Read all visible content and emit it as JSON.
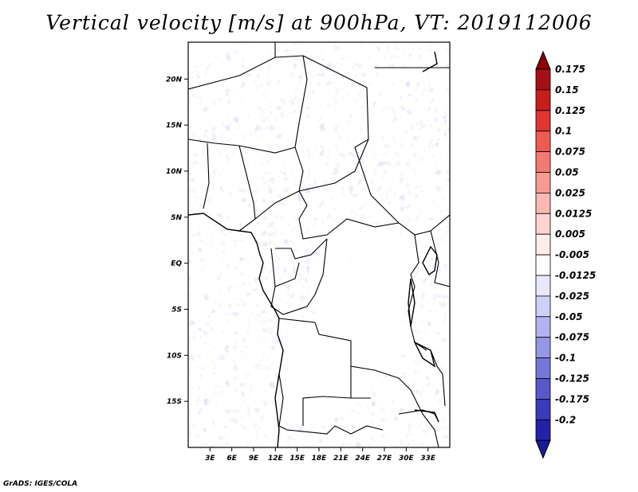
{
  "title": "Vertical velocity [m/s] at 900hPa, VT: 2019112006",
  "credit": "GrADS: IGES/COLA",
  "map": {
    "lon_range": [
      0,
      36
    ],
    "lat_range": [
      -20,
      24
    ],
    "lon_ticks": [
      "3E",
      "6E",
      "9E",
      "12E",
      "15E",
      "18E",
      "21E",
      "24E",
      "27E",
      "30E",
      "33E"
    ],
    "lat_ticks": [
      "20N",
      "15N",
      "10N",
      "5N",
      "EQ",
      "5S",
      "10S",
      "15S"
    ]
  },
  "colorbar": {
    "levels": [
      {
        "label": "0.175",
        "color": "#a50f15"
      },
      {
        "label": "0.15",
        "color": "#c81d1d"
      },
      {
        "label": "0.125",
        "color": "#e03530"
      },
      {
        "label": "0.1",
        "color": "#ef5a52"
      },
      {
        "label": "0.075",
        "color": "#f37a72"
      },
      {
        "label": "0.05",
        "color": "#f69a92"
      },
      {
        "label": "0.025",
        "color": "#f9b8b2"
      },
      {
        "label": "0.0125",
        "color": "#fcd3cf"
      },
      {
        "label": "0.005",
        "color": "#feeceb"
      },
      {
        "label": "-0.005",
        "color": "#ffffff"
      },
      {
        "label": "-0.0125",
        "color": "#e8e8fc"
      },
      {
        "label": "-0.025",
        "color": "#cfcff8"
      },
      {
        "label": "-0.05",
        "color": "#b3b3f0"
      },
      {
        "label": "-0.075",
        "color": "#9696e6"
      },
      {
        "label": "-0.1",
        "color": "#7777da"
      },
      {
        "label": "-0.125",
        "color": "#5858cc"
      },
      {
        "label": "-0.175",
        "color": "#3a3abc"
      },
      {
        "label": "-0.2",
        "color": "#2222a8"
      }
    ],
    "extend_top_color": "#8b0000",
    "extend_bottom_color": "#1a1a96"
  }
}
